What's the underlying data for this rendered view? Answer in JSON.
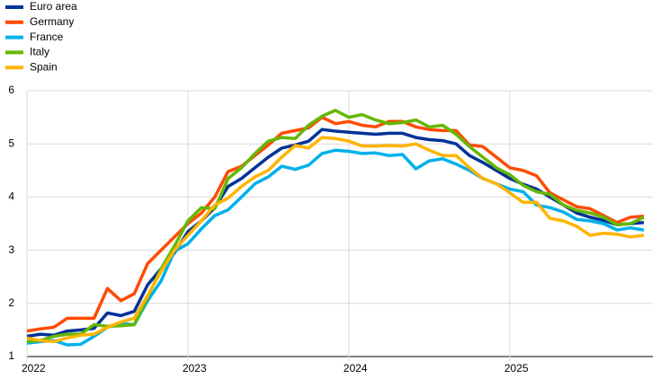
{
  "chart_data": {
    "type": "line",
    "categories": [
      "2022",
      null,
      null,
      null,
      null,
      null,
      null,
      null,
      null,
      null,
      null,
      null,
      "2023",
      null,
      null,
      null,
      null,
      null,
      null,
      null,
      null,
      null,
      null,
      null,
      "2024",
      null,
      null,
      null,
      null,
      null,
      null,
      null,
      null,
      null,
      null,
      null,
      "2025",
      null,
      null,
      null,
      null,
      null,
      null,
      null,
      null,
      null,
      null
    ],
    "ylim": [
      1,
      6
    ],
    "yticks": [
      1,
      2,
      3,
      4,
      5,
      6
    ],
    "grid": true,
    "legend": "top-left",
    "series": [
      {
        "name": "Euro area",
        "color": "#003299",
        "values": [
          1.38,
          1.42,
          1.4,
          1.48,
          1.5,
          1.53,
          1.82,
          1.77,
          1.85,
          2.35,
          2.65,
          2.95,
          3.35,
          3.55,
          3.8,
          4.2,
          4.35,
          4.55,
          4.75,
          4.92,
          4.98,
          5.05,
          5.27,
          5.24,
          5.22,
          5.2,
          5.18,
          5.2,
          5.2,
          5.12,
          5.08,
          5.06,
          5.0,
          4.78,
          4.65,
          4.5,
          4.35,
          4.24,
          4.15,
          4.0,
          3.85,
          3.7,
          3.62,
          3.56,
          3.48,
          3.5,
          3.52
        ]
      },
      {
        "name": "Germany",
        "color": "#ff4b00",
        "values": [
          1.48,
          1.52,
          1.55,
          1.72,
          1.72,
          1.72,
          2.28,
          2.05,
          2.18,
          2.75,
          3.0,
          3.25,
          3.5,
          3.7,
          4.0,
          4.48,
          4.58,
          4.78,
          4.98,
          5.2,
          5.25,
          5.3,
          5.5,
          5.38,
          5.42,
          5.35,
          5.32,
          5.42,
          5.42,
          5.32,
          5.27,
          5.25,
          5.25,
          4.98,
          4.95,
          4.75,
          4.55,
          4.5,
          4.4,
          4.08,
          3.95,
          3.82,
          3.78,
          3.65,
          3.52,
          3.62,
          3.64
        ]
      },
      {
        "name": "France",
        "color": "#00b1ea",
        "values": [
          1.25,
          1.28,
          1.3,
          1.22,
          1.23,
          1.38,
          1.55,
          1.62,
          1.6,
          2.05,
          2.42,
          2.98,
          3.12,
          3.4,
          3.65,
          3.76,
          4.0,
          4.25,
          4.38,
          4.58,
          4.52,
          4.6,
          4.82,
          4.88,
          4.86,
          4.82,
          4.83,
          4.78,
          4.8,
          4.53,
          4.68,
          4.72,
          4.62,
          4.5,
          4.35,
          4.25,
          4.15,
          4.1,
          3.85,
          3.8,
          3.72,
          3.58,
          3.55,
          3.5,
          3.38,
          3.42,
          3.38
        ]
      },
      {
        "name": "Italy",
        "color": "#65b800",
        "values": [
          1.28,
          1.3,
          1.38,
          1.42,
          1.42,
          1.6,
          1.57,
          1.58,
          1.6,
          2.12,
          2.65,
          3.08,
          3.55,
          3.8,
          3.78,
          4.35,
          4.55,
          4.82,
          5.05,
          5.12,
          5.1,
          5.35,
          5.52,
          5.63,
          5.5,
          5.55,
          5.45,
          5.38,
          5.4,
          5.45,
          5.32,
          5.35,
          5.18,
          4.95,
          4.75,
          4.55,
          4.42,
          4.22,
          4.1,
          4.05,
          3.85,
          3.75,
          3.7,
          3.62,
          3.48,
          3.5,
          3.62
        ]
      },
      {
        "name": "Spain",
        "color": "#ffb400",
        "values": [
          1.35,
          1.3,
          1.28,
          1.35,
          1.4,
          1.42,
          1.55,
          1.65,
          1.72,
          2.15,
          2.6,
          3.0,
          3.28,
          3.55,
          3.85,
          3.98,
          4.2,
          4.38,
          4.5,
          4.75,
          4.97,
          4.92,
          5.12,
          5.1,
          5.05,
          4.96,
          4.96,
          4.97,
          4.96,
          5.0,
          4.88,
          4.78,
          4.78,
          4.55,
          4.35,
          4.25,
          4.08,
          3.9,
          3.9,
          3.6,
          3.55,
          3.45,
          3.28,
          3.32,
          3.3,
          3.25,
          3.28
        ]
      }
    ]
  }
}
